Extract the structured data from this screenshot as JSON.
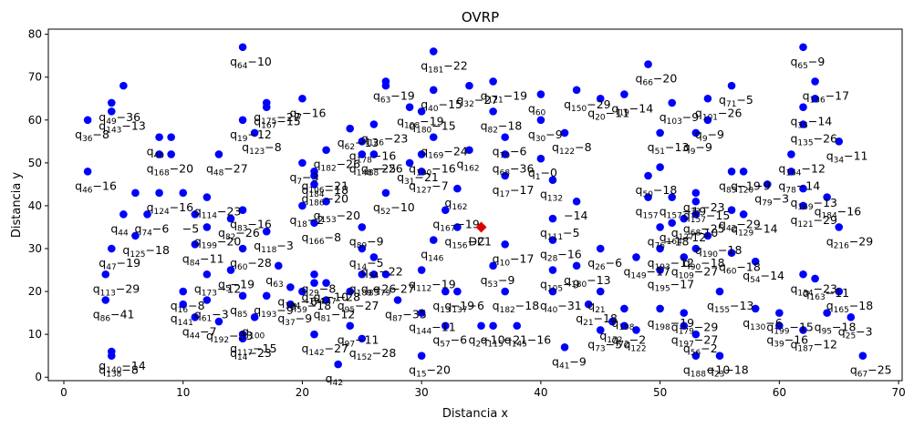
{
  "chart_data": {
    "type": "scatter",
    "title": "OVRP",
    "xlabel": "Distancia x",
    "ylabel": "Distancia y",
    "xlim": [
      -1.3,
      70.3
    ],
    "ylim": [
      -0.8,
      81.2
    ],
    "xticks": [
      0,
      10,
      20,
      30,
      40,
      50,
      60,
      70
    ],
    "yticks": [
      0,
      10,
      20,
      30,
      40,
      50,
      60,
      70,
      80
    ],
    "grid": false,
    "colors": {
      "customer": "#0000ff",
      "depot": "#dd0000"
    },
    "depot": {
      "label": "DC",
      "x": 35,
      "y": 35
    },
    "points": [
      {
        "x": 2,
        "y": 60,
        "label": "q_{36}−8"
      },
      {
        "x": 2,
        "y": 48,
        "label": "q_{46}−16"
      },
      {
        "x": 4,
        "y": 64,
        "label": "q_{49}−36"
      },
      {
        "x": 4,
        "y": 62,
        "label": "q_{143}−13"
      },
      {
        "x": 4,
        "y": 30,
        "label": "q_{47}−19"
      },
      {
        "x": 4,
        "y": 6,
        "label": "q_{140}−14"
      },
      {
        "x": 4,
        "y": 5,
        "label": "q_{138}−8"
      },
      {
        "x": 5,
        "y": 68,
        "label": ""
      },
      {
        "x": 5,
        "y": 38,
        "label": "q_{44}"
      },
      {
        "x": 6,
        "y": 43,
        "label": ""
      },
      {
        "x": 3.5,
        "y": 24,
        "label": "q_{113}−29"
      },
      {
        "x": 3.5,
        "y": 18,
        "label": "q_{86}−41"
      },
      {
        "x": 8,
        "y": 56,
        "label": "q_{40}"
      },
      {
        "x": 8,
        "y": 52,
        "label": "q_{168}−20"
      },
      {
        "x": 9,
        "y": 56,
        "label": ""
      },
      {
        "x": 9,
        "y": 52,
        "label": ""
      },
      {
        "x": 8,
        "y": 43,
        "label": "q_{124}−16"
      },
      {
        "x": 7,
        "y": 38,
        "label": "q_{74}−6"
      },
      {
        "x": 6,
        "y": 33,
        "label": "q_{125}−18"
      },
      {
        "x": 10,
        "y": 43,
        "label": ""
      },
      {
        "x": 11,
        "y": 38,
        "label": "−5"
      },
      {
        "x": 11,
        "y": 31,
        "label": "q_{84}−11"
      },
      {
        "x": 10,
        "y": 20,
        "label": "q_{16}−8"
      },
      {
        "x": 10,
        "y": 17,
        "label": "q_{141}"
      },
      {
        "x": 11,
        "y": 14,
        "label": "q_{44}−7"
      },
      {
        "x": 12,
        "y": 42,
        "label": "q_{114}−23"
      },
      {
        "x": 12,
        "y": 35,
        "label": "q_{199}−20"
      },
      {
        "x": 12,
        "y": 24,
        "label": "q_{173}−12"
      },
      {
        "x": 12,
        "y": 18,
        "label": "q_{61}−3"
      },
      {
        "x": 13,
        "y": 52,
        "label": "q_{48}−27"
      },
      {
        "x": 13,
        "y": 13,
        "label": "q_{192}−33"
      },
      {
        "x": 14,
        "y": 37,
        "label": "q_{82}−26"
      },
      {
        "x": 14,
        "y": 25,
        "label": "q_{5}−19"
      },
      {
        "x": 15,
        "y": 77,
        "label": "q_{64}−10"
      },
      {
        "x": 15,
        "y": 60,
        "label": "q_{19}−12"
      },
      {
        "x": 15,
        "y": 39,
        "label": "q_{83}−16"
      },
      {
        "x": 15,
        "y": 30,
        "label": "q_{60}−28"
      },
      {
        "x": 15,
        "y": 19,
        "label": "q_{85}"
      },
      {
        "x": 15,
        "y": 10,
        "label": "q_{117}−15"
      },
      {
        "x": 15,
        "y": 9,
        "label": "q_{14}−23"
      },
      {
        "x": 16,
        "y": 57,
        "label": "q_{123}−8"
      },
      {
        "x": 17,
        "y": 64,
        "label": "q_{175}−27"
      },
      {
        "x": 17,
        "y": 63,
        "label": "q_{167}−15"
      },
      {
        "x": 17,
        "y": 34,
        "label": "q_{118}−3"
      },
      {
        "x": 17,
        "y": 19,
        "label": "q_{193}−9"
      },
      {
        "x": 16,
        "y": 14,
        "label": "q_{100}"
      },
      {
        "x": 18,
        "y": 26,
        "label": "q_{63}"
      },
      {
        "x": 19,
        "y": 21,
        "label": "q_{194}−6"
      },
      {
        "x": 19,
        "y": 17,
        "label": "q_{37}−9"
      },
      {
        "x": 20,
        "y": 65,
        "label": "q_{7}−16"
      },
      {
        "x": 20,
        "y": 50,
        "label": "q_{7}−3"
      },
      {
        "x": 20,
        "y": 40,
        "label": "q_{18}−2"
      },
      {
        "x": 20,
        "y": 20,
        "label": "q_{59}−18"
      },
      {
        "x": 21,
        "y": 48,
        "label": "q_{106}−21"
      },
      {
        "x": 21,
        "y": 47,
        "label": "q_{184}−18"
      },
      {
        "x": 21,
        "y": 45,
        "label": "q_{186}−20"
      },
      {
        "x": 21,
        "y": 36,
        "label": "q_{166}−8"
      },
      {
        "x": 21,
        "y": 24,
        "label": "q_{29}−8"
      },
      {
        "x": 21,
        "y": 22,
        "label": "q_{194}−10"
      },
      {
        "x": 21,
        "y": 10,
        "label": "q_{142}−27"
      },
      {
        "x": 22,
        "y": 53,
        "label": "q_{182}−26"
      },
      {
        "x": 22,
        "y": 41,
        "label": "q_{153}−20"
      },
      {
        "x": 22,
        "y": 22,
        "label": "q_{147}−28"
      },
      {
        "x": 22,
        "y": 18,
        "label": "q_{81}−12"
      },
      {
        "x": 23,
        "y": 3,
        "label": "q_{42}"
      },
      {
        "x": 24,
        "y": 58,
        "label": "q_{62}−13"
      },
      {
        "x": 24,
        "y": 20,
        "label": "q_{95}−27"
      },
      {
        "x": 24,
        "y": 12,
        "label": "q_{97}−11"
      },
      {
        "x": 25,
        "y": 55,
        "label": "q_{178}−16"
      },
      {
        "x": 25,
        "y": 52,
        "label": "q_{148}−25"
      },
      {
        "x": 25,
        "y": 35,
        "label": "q_{89}−9"
      },
      {
        "x": 25,
        "y": 30,
        "label": "q_{14}−5"
      },
      {
        "x": 25,
        "y": 24,
        "label": "q_{189}−26"
      },
      {
        "x": 25,
        "y": 9,
        "label": "q_{152}−28"
      },
      {
        "x": 26,
        "y": 59,
        "label": "q_{126}−23"
      },
      {
        "x": 26,
        "y": 52,
        "label": "q_{88}−26"
      },
      {
        "x": 26,
        "y": 28,
        "label": "q_{94}−22"
      },
      {
        "x": 26,
        "y": 24,
        "label": "q_{83}"
      },
      {
        "x": 27,
        "y": 69,
        "label": "q_{63}−19"
      },
      {
        "x": 27,
        "y": 68,
        "label": ""
      },
      {
        "x": 27,
        "y": 43,
        "label": "q_{52}−10"
      },
      {
        "x": 27,
        "y": 24,
        "label": "q_{79}−27"
      },
      {
        "x": 28,
        "y": 18,
        "label": "q_{87}−35"
      },
      {
        "x": 29,
        "y": 63,
        "label": "q_{108}−19"
      },
      {
        "x": 29,
        "y": 50,
        "label": "q_{31}−21"
      },
      {
        "x": 30,
        "y": 62,
        "label": "q_{180}−15"
      },
      {
        "x": 30,
        "y": 52,
        "label": "q_{190}−16"
      },
      {
        "x": 30,
        "y": 48,
        "label": "q_{127}−7"
      },
      {
        "x": 30,
        "y": 25,
        "label": "q_{112}−19"
      },
      {
        "x": 30,
        "y": 15,
        "label": "q_{144}−11"
      },
      {
        "x": 30,
        "y": 5,
        "label": "q_{15}−20"
      },
      {
        "x": 31,
        "y": 76,
        "label": "q_{181}−22"
      },
      {
        "x": 31,
        "y": 67,
        "label": "q_{40}−15"
      },
      {
        "x": 31,
        "y": 56,
        "label": "q_{169}−24"
      },
      {
        "x": 31,
        "y": 32,
        "label": "q_{146}"
      },
      {
        "x": 32,
        "y": 39,
        "label": "q_{167}−19"
      },
      {
        "x": 32,
        "y": 20,
        "label": "q_{13}−19"
      },
      {
        "x": 32,
        "y": 12,
        "label": "q_{57}−6"
      },
      {
        "x": 33,
        "y": 44,
        "label": "q_{162}"
      },
      {
        "x": 33,
        "y": 35,
        "label": "q_{156}−21"
      },
      {
        "x": 33,
        "y": 20,
        "label": "q_{137}−6"
      },
      {
        "x": 34,
        "y": 68,
        "label": "q_{32}−27"
      },
      {
        "x": 34,
        "y": 53,
        "label": "q_{162}"
      },
      {
        "x": 35,
        "y": 12,
        "label": "q_{2}−10"
      },
      {
        "x": 36,
        "y": 69,
        "label": "q_{121}−19"
      },
      {
        "x": 36,
        "y": 62,
        "label": "q_{82}−18"
      },
      {
        "x": 36,
        "y": 26,
        "label": "q_{53}−9"
      },
      {
        "x": 36,
        "y": 12,
        "label": "q_{115}−21"
      },
      {
        "x": 37,
        "y": 56,
        "label": "q_{70}−6"
      },
      {
        "x": 37,
        "y": 52,
        "label": "q_{68}−36"
      },
      {
        "x": 37,
        "y": 47,
        "label": "q_{17}−17"
      },
      {
        "x": 37,
        "y": 31,
        "label": "q_{10}−17"
      },
      {
        "x": 37,
        "y": 20,
        "label": "q_{182}−18"
      },
      {
        "x": 38,
        "y": 12,
        "label": "q_{145}−16"
      },
      {
        "x": 40,
        "y": 66,
        "label": "q_{60}"
      },
      {
        "x": 40,
        "y": 60,
        "label": "q_{30}−9"
      },
      {
        "x": 40,
        "y": 51,
        "label": "q_{1}−0"
      },
      {
        "x": 41,
        "y": 46,
        "label": "q_{132}"
      },
      {
        "x": 41,
        "y": 37,
        "label": "q_{111}−5"
      },
      {
        "x": 41,
        "y": 32,
        "label": "q_{28}−16"
      },
      {
        "x": 41,
        "y": 25,
        "label": "q_{105}−9"
      },
      {
        "x": 41,
        "y": 20,
        "label": "q_{40}−31"
      },
      {
        "x": 42,
        "y": 57,
        "label": "q_{122}−8"
      },
      {
        "x": 42,
        "y": 7,
        "label": "q_{41}−9"
      },
      {
        "x": 43,
        "y": 67,
        "label": "q_{150}−29"
      },
      {
        "x": 43,
        "y": 41,
        "label": "−14"
      },
      {
        "x": 43,
        "y": 26,
        "label": "q_{180}−13"
      },
      {
        "x": 44,
        "y": 17,
        "label": "q_{21}−18"
      },
      {
        "x": 45,
        "y": 65,
        "label": "q_{20}−11"
      },
      {
        "x": 45,
        "y": 30,
        "label": "q_{26}−6"
      },
      {
        "x": 45,
        "y": 20,
        "label": "q_{21}"
      },
      {
        "x": 45,
        "y": 11,
        "label": "q_{73}−5"
      },
      {
        "x": 46,
        "y": 13,
        "label": "q_{172}"
      },
      {
        "x": 47,
        "y": 66,
        "label": "q_{19}−14"
      },
      {
        "x": 47,
        "y": 16,
        "label": "q_{198}"
      },
      {
        "x": 47,
        "y": 12,
        "label": "q_{72}−2"
      },
      {
        "x": 48,
        "y": 28,
        "label": "q_{149}−17"
      },
      {
        "x": 48,
        "y": 11,
        "label": "q_{122}"
      },
      {
        "x": 49,
        "y": 73,
        "label": "q_{66}−20"
      },
      {
        "x": 49,
        "y": 47,
        "label": "q_{50}−18"
      },
      {
        "x": 49,
        "y": 42,
        "label": "q_{157}"
      },
      {
        "x": 50,
        "y": 57,
        "label": "q_{51}−13"
      },
      {
        "x": 50,
        "y": 49,
        "label": ""
      },
      {
        "x": 50,
        "y": 35,
        "label": "q_{76}−18"
      },
      {
        "x": 50,
        "y": 30,
        "label": "q_{193}−12"
      },
      {
        "x": 50,
        "y": 25,
        "label": "q_{195}−17"
      },
      {
        "x": 50,
        "y": 16,
        "label": "q_{198}−19"
      },
      {
        "x": 51,
        "y": 64,
        "label": "q_{103}−9"
      },
      {
        "x": 51,
        "y": 42,
        "label": "q_{157}−19"
      },
      {
        "x": 51,
        "y": 36,
        "label": "q_{164}−12"
      },
      {
        "x": 52,
        "y": 37,
        "label": "q_{127}−10"
      },
      {
        "x": 52,
        "y": 28,
        "label": "q_{109}−27"
      },
      {
        "x": 52,
        "y": 15,
        "label": "q_{179}−29"
      },
      {
        "x": 52,
        "y": 12,
        "label": "q_{197}−27"
      },
      {
        "x": 53,
        "y": 57,
        "label": "q_{9}−9"
      },
      {
        "x": 53,
        "y": 43,
        "label": "q_{33}−23"
      },
      {
        "x": 53,
        "y": 41,
        "label": "q_{157}−15"
      },
      {
        "x": 53,
        "y": 38,
        "label": "q_{68}−25"
      },
      {
        "x": 53,
        "y": 30,
        "label": "q_{90}−18"
      },
      {
        "x": 53,
        "y": 10,
        "label": "q_{56}−2"
      },
      {
        "x": 53,
        "y": 5,
        "label": "q_{188}−10"
      },
      {
        "x": 54,
        "y": 65,
        "label": "q_{101}−26"
      },
      {
        "x": 54,
        "y": 60,
        "label": "q_{9}−9"
      },
      {
        "x": 54,
        "y": 33,
        "label": "q_{190}−18"
      },
      {
        "x": 55,
        "y": 20,
        "label": "q_{155}−13"
      },
      {
        "x": 55,
        "y": 5,
        "label": "q_{23}−18"
      },
      {
        "x": 56,
        "y": 68,
        "label": "q_{71}−5"
      },
      {
        "x": 56,
        "y": 48,
        "label": "q_{85}−19"
      },
      {
        "x": 56,
        "y": 39,
        "label": "q_{42}−29"
      },
      {
        "x": 56,
        "y": 29,
        "label": "q_{60}−18"
      },
      {
        "x": 57,
        "y": 48,
        "label": "q_{120}−9"
      },
      {
        "x": 57,
        "y": 38,
        "label": "q_{129}−14"
      },
      {
        "x": 58,
        "y": 27,
        "label": "q_{54}−14"
      },
      {
        "x": 58,
        "y": 16,
        "label": "q_{130}−6"
      },
      {
        "x": 59,
        "y": 45,
        "label": "q_{79}−3"
      },
      {
        "x": 60,
        "y": 12,
        "label": "q_{39}−16"
      },
      {
        "x": 60,
        "y": 15,
        "label": "q_{199}−15"
      },
      {
        "x": 61,
        "y": 48,
        "label": "q_{78}−14"
      },
      {
        "x": 61,
        "y": 52,
        "label": "q_{164}−12"
      },
      {
        "x": 62,
        "y": 77,
        "label": "q_{65}−9"
      },
      {
        "x": 62,
        "y": 63,
        "label": "q_{35}−14"
      },
      {
        "x": 62,
        "y": 59,
        "label": "q_{135}−26"
      },
      {
        "x": 62,
        "y": 44,
        "label": "q_{169}−13"
      },
      {
        "x": 62,
        "y": 40,
        "label": "q_{121}−29"
      },
      {
        "x": 62,
        "y": 24,
        "label": "q_{134}−23"
      },
      {
        "x": 62,
        "y": 11,
        "label": "q_{187}−12"
      },
      {
        "x": 63,
        "y": 69,
        "label": "q_{136}−17"
      },
      {
        "x": 63,
        "y": 65,
        "label": ""
      },
      {
        "x": 63,
        "y": 23,
        "label": "q_{163}−11"
      },
      {
        "x": 64,
        "y": 42,
        "label": "q_{184}−16"
      },
      {
        "x": 64,
        "y": 15,
        "label": "q_{95}−18"
      },
      {
        "x": 65,
        "y": 55,
        "label": "q_{34}−11"
      },
      {
        "x": 65,
        "y": 35,
        "label": "q_{216}−29"
      },
      {
        "x": 65,
        "y": 20,
        "label": "q_{165}−18"
      },
      {
        "x": 66,
        "y": 14,
        "label": "q_{25}−3"
      },
      {
        "x": 67,
        "y": 5,
        "label": "q_{67}−25"
      }
    ]
  }
}
